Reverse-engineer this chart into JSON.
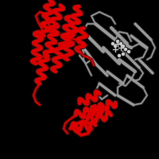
{
  "background_color": "#000000",
  "figure_size": [
    2.0,
    2.0
  ],
  "dpi": 100,
  "red_color": "#cc0000",
  "gray_color": "#aaaaaa",
  "dark_gray": "#888888",
  "light_gray": "#cccccc",
  "helix_red": "#dd0000",
  "sheet_gray": "#999999",
  "title": ""
}
